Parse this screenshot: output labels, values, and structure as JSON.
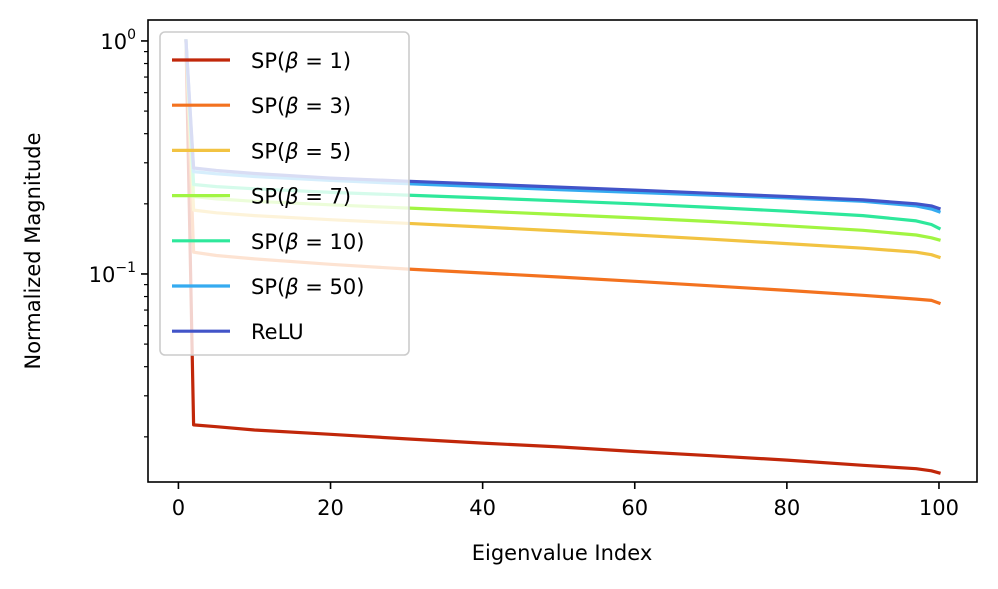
{
  "chart_data": {
    "type": "line",
    "title": "",
    "xlabel": "Eigenvalue Index",
    "ylabel": "Normalized Magnitude",
    "xlim": [
      -4,
      105
    ],
    "ylim": [
      0.0128,
      1.23
    ],
    "yscale": "log",
    "grid": false,
    "legend_position": "top-left",
    "x_ticks": [
      {
        "value": 0,
        "label": "0"
      },
      {
        "value": 20,
        "label": "20"
      },
      {
        "value": 40,
        "label": "40"
      },
      {
        "value": 60,
        "label": "60"
      },
      {
        "value": 80,
        "label": "80"
      },
      {
        "value": 100,
        "label": "100"
      }
    ],
    "y_ticks": [
      {
        "value": 1,
        "base": "10",
        "exp": "0"
      },
      {
        "value": 0.1,
        "base": "10",
        "exp": "−1"
      }
    ],
    "y_minor_ticks": [
      0.02,
      0.03,
      0.04,
      0.05,
      0.06,
      0.07,
      0.08,
      0.09,
      0.2,
      0.3,
      0.4,
      0.5,
      0.6,
      0.7,
      0.8,
      0.9
    ],
    "x": [
      1,
      2,
      5,
      10,
      20,
      30,
      40,
      50,
      60,
      70,
      80,
      90,
      97,
      99,
      100
    ],
    "series": [
      {
        "name": "SP(β = 1)",
        "prefix": "SP(",
        "param": "β",
        "suffix": " = 1)",
        "color": "#c1270a",
        "values": [
          1.0,
          0.0225,
          0.0221,
          0.0214,
          0.0205,
          0.0196,
          0.0188,
          0.0181,
          0.0173,
          0.0166,
          0.0159,
          0.0151,
          0.0146,
          0.0143,
          0.014
        ]
      },
      {
        "name": "SP(β = 3)",
        "prefix": "SP(",
        "param": "β",
        "suffix": " = 3)",
        "color": "#f3721f",
        "values": [
          1.0,
          0.124,
          0.12,
          0.116,
          0.11,
          0.105,
          0.101,
          0.097,
          0.093,
          0.089,
          0.085,
          0.081,
          0.078,
          0.077,
          0.075
        ]
      },
      {
        "name": "SP(β = 5)",
        "prefix": "SP(",
        "param": "β",
        "suffix": " = 5)",
        "color": "#f2c342",
        "values": [
          1.0,
          0.188,
          0.183,
          0.178,
          0.171,
          0.165,
          0.159,
          0.153,
          0.147,
          0.141,
          0.135,
          0.129,
          0.124,
          0.121,
          0.118
        ]
      },
      {
        "name": "SP(β = 7)",
        "prefix": "SP(",
        "param": "β",
        "suffix": " = 7)",
        "color": "#a1f542",
        "values": [
          1.0,
          0.215,
          0.21,
          0.205,
          0.198,
          0.192,
          0.186,
          0.18,
          0.174,
          0.168,
          0.161,
          0.154,
          0.147,
          0.143,
          0.14
        ]
      },
      {
        "name": "SP(β = 10)",
        "prefix": "SP(",
        "param": "β",
        "suffix": " = 10)",
        "color": "#2ee89b",
        "values": [
          1.0,
          0.242,
          0.237,
          0.232,
          0.224,
          0.218,
          0.212,
          0.206,
          0.2,
          0.193,
          0.186,
          0.178,
          0.169,
          0.163,
          0.157
        ]
      },
      {
        "name": "SP(β = 50)",
        "prefix": "SP(",
        "param": "β",
        "suffix": " = 50)",
        "color": "#35abf0",
        "values": [
          1.0,
          0.275,
          0.269,
          0.262,
          0.252,
          0.244,
          0.237,
          0.23,
          0.224,
          0.218,
          0.212,
          0.205,
          0.196,
          0.19,
          0.185
        ]
      },
      {
        "name": "ReLU",
        "prefix": "ReLU",
        "param": "",
        "suffix": "",
        "color": "#4254c8",
        "values": [
          1.0,
          0.285,
          0.278,
          0.27,
          0.258,
          0.25,
          0.243,
          0.236,
          0.229,
          0.222,
          0.215,
          0.208,
          0.2,
          0.196,
          0.191
        ]
      }
    ]
  }
}
